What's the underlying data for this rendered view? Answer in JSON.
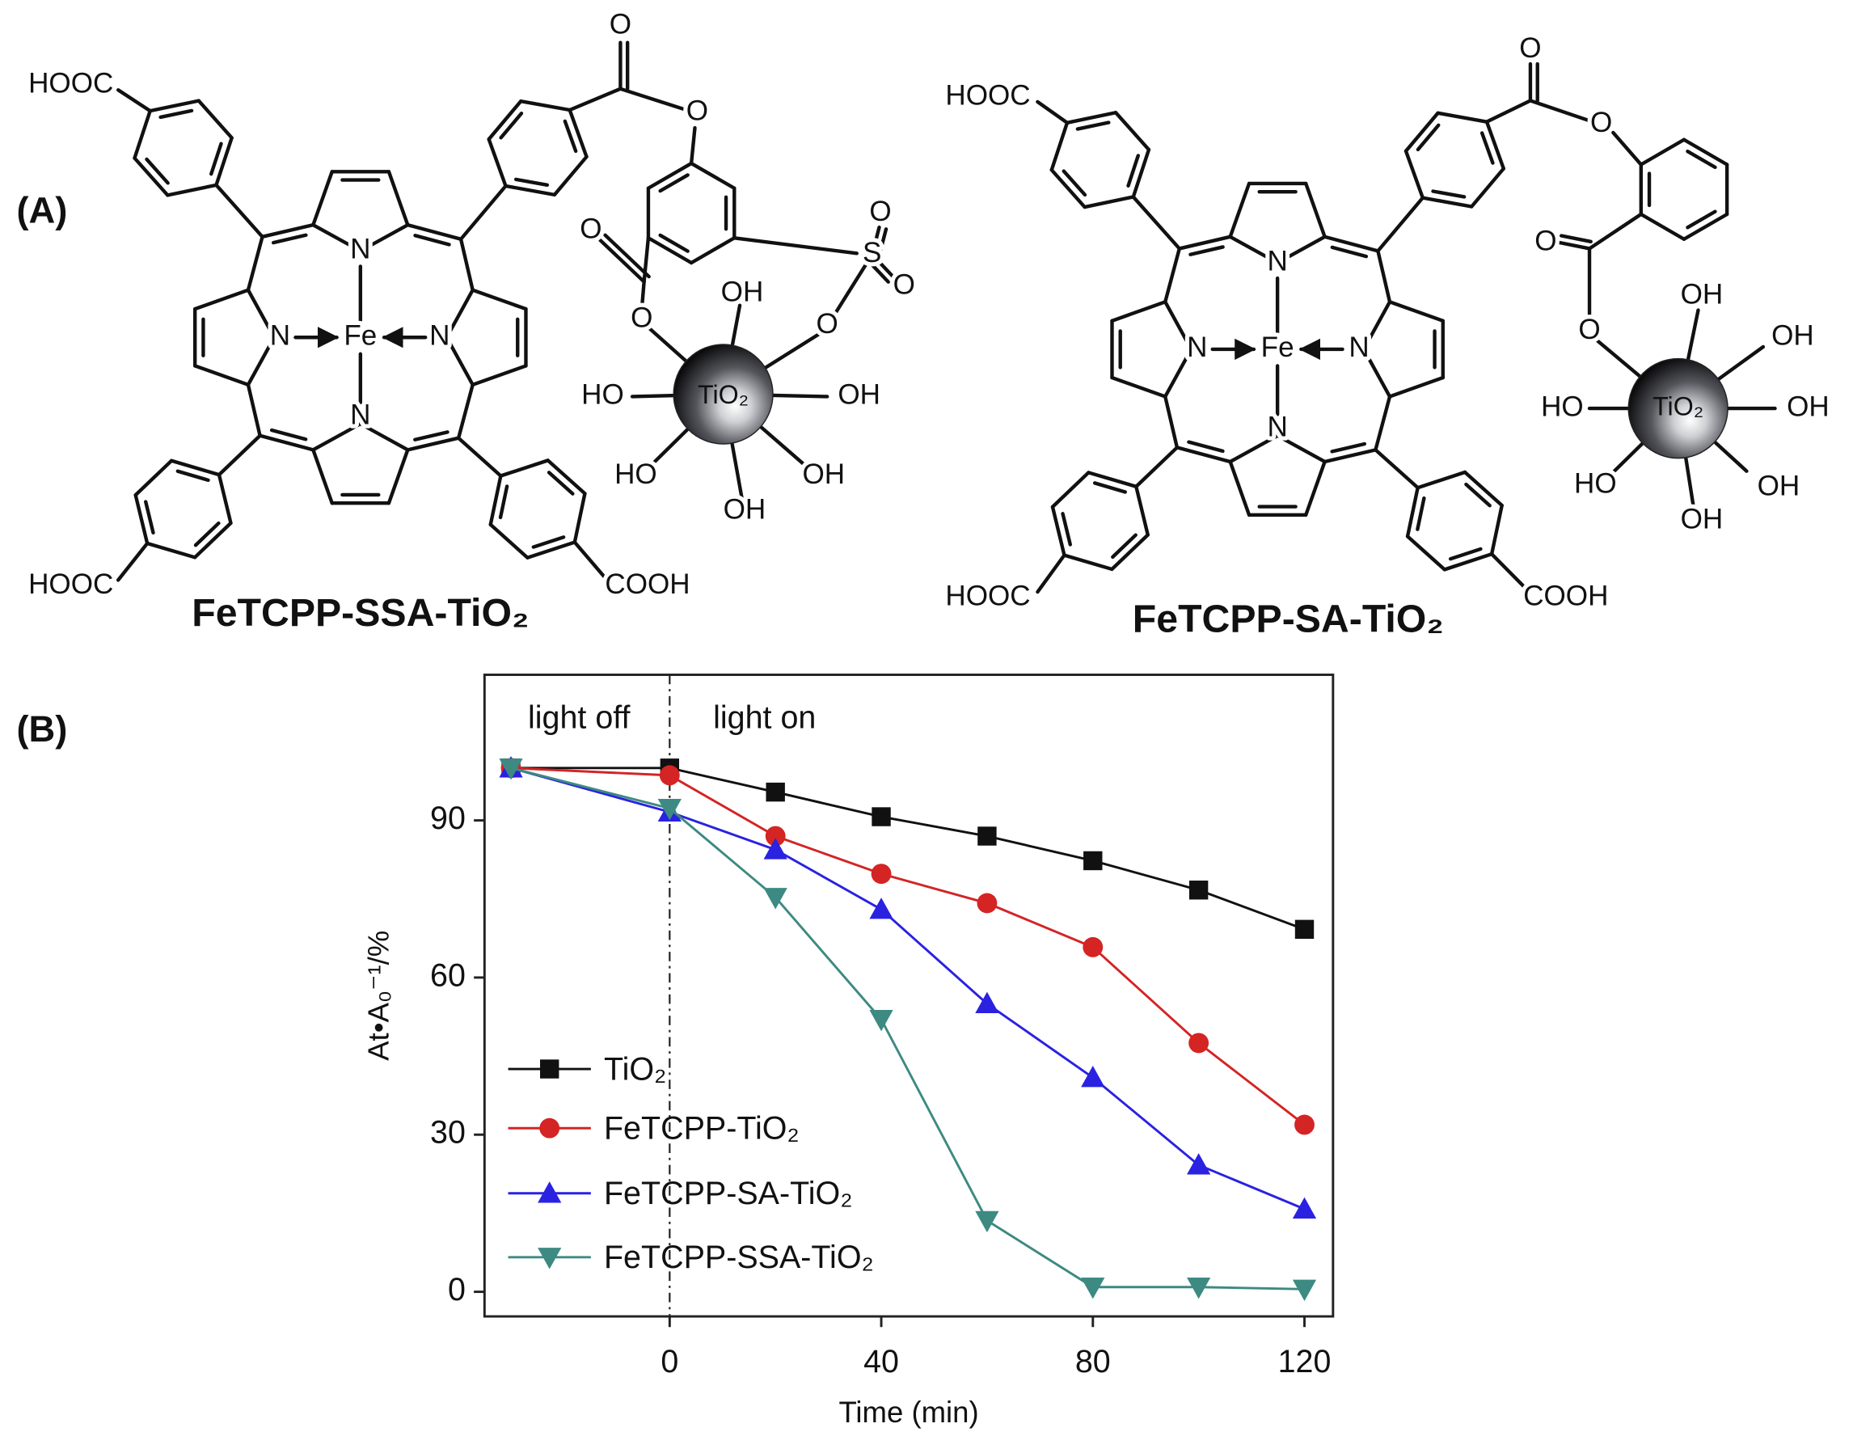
{
  "panels": {
    "a": "(A)",
    "b": "(B)"
  },
  "structures": [
    {
      "name": "FeTCPP-SSA-TiO₂",
      "atoms": [
        "HOOC",
        "O",
        "O",
        "N",
        "N",
        "Fe",
        "N",
        "N",
        "O",
        "S",
        "O",
        "O",
        "O",
        "OH",
        "O",
        "TiO₂",
        "HO",
        "OH",
        "HO",
        "OH",
        "OH",
        "HOOC",
        "COOH"
      ]
    },
    {
      "name": "FeTCPP-SA-TiO₂",
      "atoms": [
        "HOOC",
        "O",
        "O",
        "N",
        "N",
        "Fe",
        "N",
        "N",
        "O",
        "O",
        "OH",
        "OH",
        "HO",
        "TiO₂",
        "OH",
        "HO",
        "OH",
        "OH",
        "HOOC",
        "COOH"
      ]
    }
  ],
  "chart_data": {
    "type": "line",
    "x_label": "Time (min)",
    "y_label": "At•A₀⁻¹/%",
    "annotations": [
      "light off",
      "light on"
    ],
    "vlines": [
      0
    ],
    "x": [
      -30,
      0,
      20,
      40,
      60,
      80,
      100,
      120
    ],
    "xlim": [
      -35,
      125.4
    ],
    "xticks": [
      0,
      40,
      80,
      120
    ],
    "ylim": [
      -4.7,
      117.8
    ],
    "yticks": [
      0,
      30,
      60,
      90
    ],
    "legend": "lower left",
    "series": [
      {
        "name": "TiO₂",
        "color": "#111111",
        "marker": "square",
        "values": [
          100,
          100,
          95.4,
          90.7,
          87,
          82.3,
          76.7,
          69.2
        ]
      },
      {
        "name": "FeTCPP-TiO₂",
        "color": "#d42424",
        "marker": "circle",
        "values": [
          100,
          98.6,
          87,
          79.8,
          74.2,
          65.8,
          47.5,
          31.9
        ]
      },
      {
        "name": "FeTCPP-SA-TiO₂",
        "color": "#2a22e0",
        "marker": "triangle-up",
        "values": [
          100,
          91.6,
          84.4,
          73.0,
          55,
          40.9,
          24.2,
          15.8
        ]
      },
      {
        "name": "FeTCPP-SSA-TiO₂",
        "color": "#3d8a82",
        "marker": "triangle-down",
        "values": [
          100,
          92.3,
          75.3,
          52,
          13.6,
          0.9,
          0.9,
          0.5
        ]
      }
    ]
  }
}
